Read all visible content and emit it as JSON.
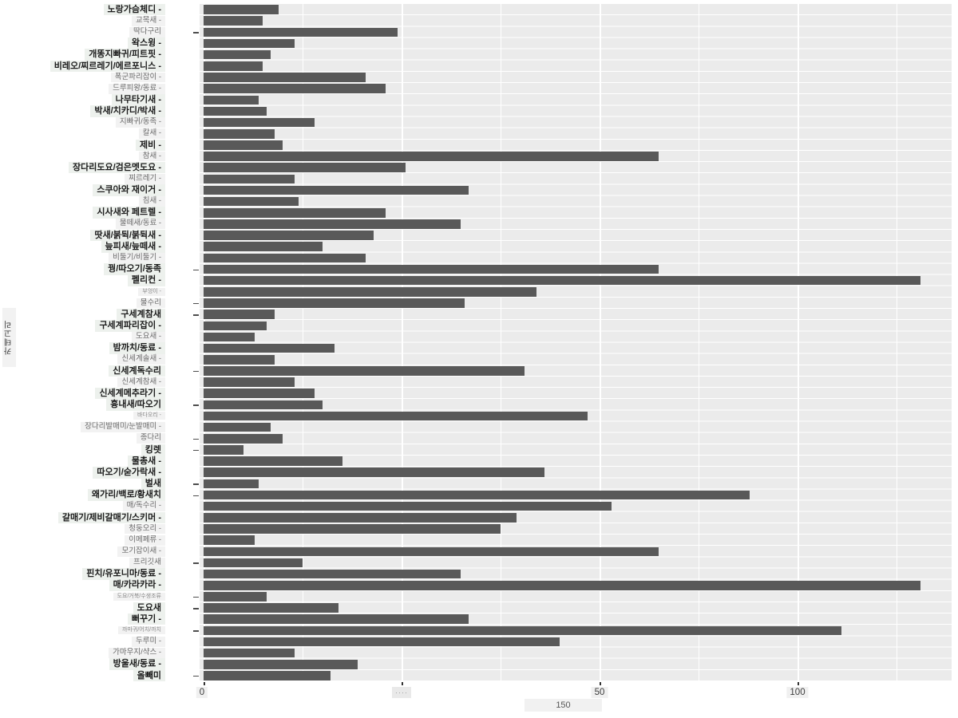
{
  "y_axis": {
    "title": "카테고리"
  },
  "x_axis": {
    "tick_labels": [
      "0",
      "····",
      "50",
      "100"
    ],
    "stray_label": "150"
  },
  "chart_data": {
    "type": "bar",
    "orientation": "horizontal",
    "title": "",
    "xlabel": "",
    "ylabel": "카테고리",
    "xlim": [
      0,
      189
    ],
    "xticks": [
      0,
      50,
      100,
      150
    ],
    "grid": true,
    "legend": false,
    "bar_color": "#595959",
    "panel_bg": "#ebebeb",
    "grid_color": "#ffffff",
    "categories": [
      "노랑가슴체디 -",
      "교목새 -",
      "딱다구리",
      "왁스윙 -",
      "개똥지빠귀/피트핏 -",
      "비레오/찌르레기/에르포니스 -",
      "폭군파리잡이 -",
      "드루피왕/동료 -",
      "나무타기새 -",
      "박새/치카디/박새 -",
      "지빠귀/동족 -",
      "칼새 -",
      "제비 -",
      "참새 -",
      "장다리도요/검은멧도요 -",
      "찌르레기 -",
      "스쿠아와 재이거 -",
      "침새 -",
      "시사새와 페트렐 -",
      "물떼새/동료 -",
      "땃새/붉뒥/붉뒥새 -",
      "늪피새/늪떼새 -",
      "비둘기/비둘기 -",
      "꿩/따오기/동족",
      "펠리컨 -",
      "부엉이 -",
      "물수리",
      "구세계참새",
      "구세계파리잡이 -",
      "도요새 -",
      "밤까치/동료 -",
      "신세계솔새 -",
      "신세계독수리",
      "신세계참새 -",
      "신세계메추라기 -",
      "흉내새/따오기",
      "바다오리 -",
      "장다리발매미/눈발매미 -",
      "종다리",
      "킹렛",
      "물총새 -",
      "따오기/숟가락새 -",
      "벌새",
      "왜가리/백로/황새치",
      "매/독수리 -",
      "갈매기/제비갈매기/스키머 -",
      "청둥오리 -",
      "이메페류 -",
      "모기잡이새 -",
      "프리깃새",
      "핀치/유포니마/동료 -",
      "매/카라카라 -",
      "도요/거북/수생조류",
      "도요새",
      "뻐꾸기 -",
      "까마귀/어치/까치",
      "두루미 -",
      "가마우지/샥스 -",
      "방울새/동료 -",
      "올빼미"
    ],
    "values": [
      19,
      15,
      49,
      23,
      17,
      15,
      41,
      46,
      14,
      16,
      28,
      18,
      20,
      115,
      51,
      23,
      67,
      24,
      46,
      65,
      43,
      30,
      41,
      115,
      181,
      84,
      66,
      18,
      16,
      13,
      33,
      18,
      81,
      23,
      28,
      30,
      97,
      17,
      20,
      10,
      35,
      86,
      14,
      138,
      103,
      79,
      75,
      13,
      115,
      25,
      65,
      181,
      16,
      34,
      67,
      161,
      90,
      23,
      39,
      32
    ],
    "label_styles": [
      "b",
      "s",
      "s",
      "b",
      "b",
      "b",
      "s",
      "s",
      "b",
      "b",
      "s",
      "s",
      "b",
      "s",
      "b",
      "s",
      "b",
      "s",
      "b",
      "s",
      "b",
      "b",
      "s",
      "b",
      "b",
      "t",
      "s",
      "b",
      "b",
      "s",
      "b",
      "s",
      "b",
      "s",
      "b",
      "b",
      "t",
      "s",
      "s",
      "b",
      "b",
      "b",
      "b",
      "b",
      "s",
      "b",
      "s",
      "s",
      "s",
      "s",
      "b",
      "b",
      "t",
      "b",
      "b",
      "t",
      "s",
      "s",
      "b",
      "b"
    ],
    "separate_tick_rows": [
      3,
      24,
      27,
      28,
      33,
      36,
      39,
      40,
      43,
      44,
      50,
      53,
      54,
      56,
      60
    ]
  }
}
